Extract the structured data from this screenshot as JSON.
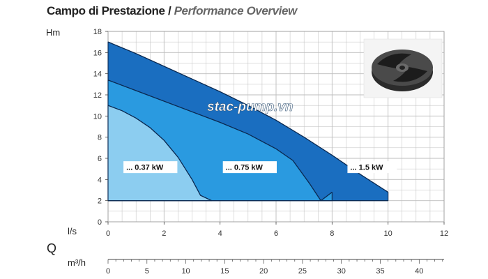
{
  "header": {
    "title": "Campo di Prestazione",
    "separator": "/",
    "subtitle": "Performance Overview"
  },
  "watermark": "stac-pump.vn",
  "colors": {
    "band_037": "#8ccdf0",
    "band_075": "#2a9ae0",
    "band_15": "#1a6ec0",
    "curve_line": "#0b2a52",
    "grid": "#bdbdbd",
    "axis": "#444444"
  },
  "chart_data": {
    "type": "area",
    "title": "",
    "ylabel": "Hm",
    "xlabel": "l/s",
    "x2label_symbol": "Q",
    "x2label": "m³/h",
    "xlim": [
      0,
      12
    ],
    "ylim": [
      0,
      18
    ],
    "x_ticks": [
      "0",
      "2",
      "4",
      "6",
      "8",
      "10",
      "12"
    ],
    "y_ticks": [
      "0",
      "2",
      "4",
      "6",
      "8",
      "10",
      "12",
      "14",
      "16",
      "18"
    ],
    "x2lim": [
      0,
      43.2
    ],
    "x2_ticks": [
      "0",
      "5",
      "10",
      "15",
      "20",
      "25",
      "30",
      "35",
      "40"
    ],
    "grid": true,
    "series": [
      {
        "name": "... 0.37 kW",
        "label": "... 0.37 kW",
        "color": "#8ccdf0",
        "x": [
          0,
          0.5,
          1.0,
          1.5,
          2.0,
          2.5,
          3.0,
          3.3,
          3.7
        ],
        "y": [
          11,
          10.5,
          9.8,
          8.9,
          7.7,
          6.1,
          4.0,
          2.5,
          2
        ]
      },
      {
        "name": "... 0.75 kW",
        "label": "... 0.75 kW",
        "color": "#2a9ae0",
        "x": [
          0,
          1,
          2,
          3,
          4,
          5,
          6,
          6.6,
          7.2,
          7.6,
          8.0
        ],
        "y": [
          13.4,
          12.4,
          11.4,
          10.4,
          9.4,
          8.3,
          6.9,
          5.8,
          3.6,
          2,
          2.8
        ]
      },
      {
        "name": "... 1.5 kW",
        "label": "... 1.5 kW",
        "color": "#1a6ec0",
        "x": [
          0,
          1,
          2,
          3,
          4,
          5,
          6,
          7,
          8,
          9,
          10
        ],
        "y": [
          17,
          15.9,
          14.7,
          13.5,
          12.3,
          11.0,
          9.6,
          8.0,
          6.3,
          4.5,
          2.8
        ]
      }
    ],
    "operating_min_head": 2
  }
}
